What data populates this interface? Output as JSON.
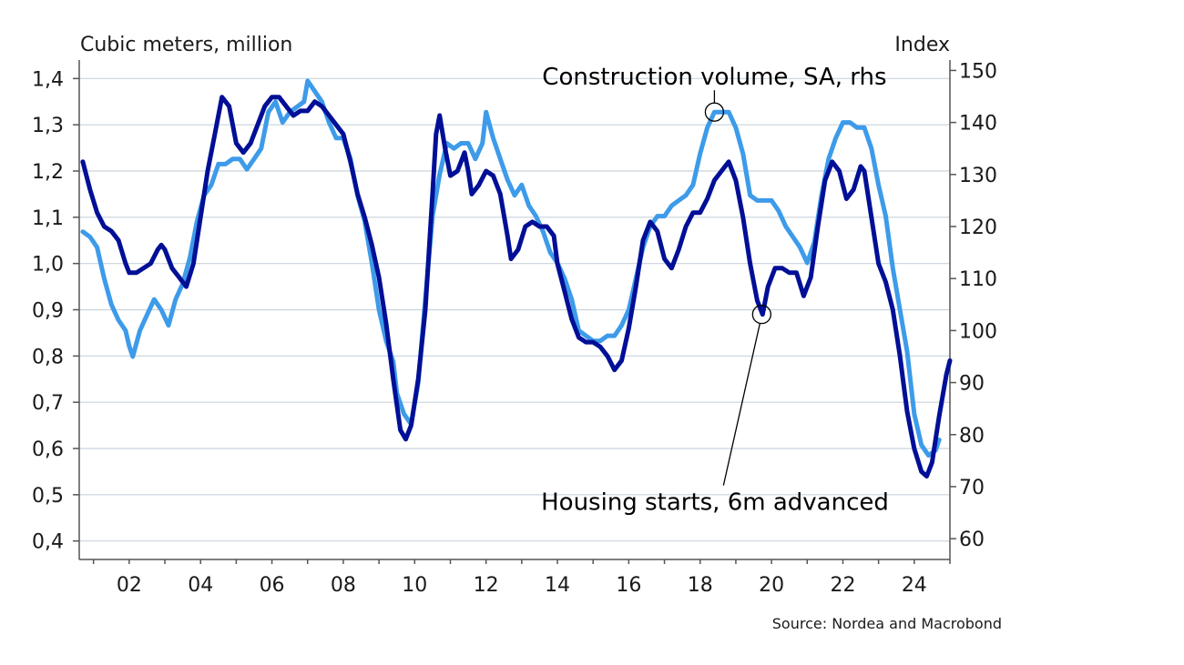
{
  "chart_data": {
    "type": "line",
    "left_axis_title": "Cubic meters, million",
    "right_axis_title": "Index",
    "source": "Source: Nordea and Macrobond",
    "x_ticks": [
      {
        "x": 2002,
        "label": "02"
      },
      {
        "x": 2004,
        "label": "04"
      },
      {
        "x": 2006,
        "label": "06"
      },
      {
        "x": 2008,
        "label": "08"
      },
      {
        "x": 2010,
        "label": "10"
      },
      {
        "x": 2012,
        "label": "12"
      },
      {
        "x": 2014,
        "label": "14"
      },
      {
        "x": 2016,
        "label": "16"
      },
      {
        "x": 2018,
        "label": "18"
      },
      {
        "x": 2020,
        "label": "20"
      },
      {
        "x": 2022,
        "label": "22"
      },
      {
        "x": 2024,
        "label": "24"
      }
    ],
    "xlim": [
      2000.6,
      2025.0
    ],
    "y_left": {
      "lim": [
        0.36,
        1.44
      ],
      "ticks": [
        {
          "v": 0.4,
          "label": "0,4"
        },
        {
          "v": 0.5,
          "label": "0,5"
        },
        {
          "v": 0.6,
          "label": "0,6"
        },
        {
          "v": 0.7,
          "label": "0,7"
        },
        {
          "v": 0.8,
          "label": "0,8"
        },
        {
          "v": 0.9,
          "label": "0,9"
        },
        {
          "v": 1.0,
          "label": "1,0"
        },
        {
          "v": 1.1,
          "label": "1,1"
        },
        {
          "v": 1.2,
          "label": "1,2"
        },
        {
          "v": 1.3,
          "label": "1,3"
        },
        {
          "v": 1.4,
          "label": "1,4"
        }
      ]
    },
    "y_right": {
      "lim": [
        56,
        152
      ],
      "ticks": [
        {
          "v": 60,
          "label": "60"
        },
        {
          "v": 70,
          "label": "70"
        },
        {
          "v": 80,
          "label": "80"
        },
        {
          "v": 90,
          "label": "90"
        },
        {
          "v": 100,
          "label": "100"
        },
        {
          "v": 110,
          "label": "110"
        },
        {
          "v": 120,
          "label": "120"
        },
        {
          "v": 130,
          "label": "130"
        },
        {
          "v": 140,
          "label": "140"
        },
        {
          "v": 150,
          "label": "150"
        }
      ]
    },
    "grid": true,
    "series": [
      {
        "name": "Housing starts, 6m advanced",
        "axis": "left",
        "color": "#000f96",
        "points": [
          [
            2000.7,
            1.22
          ],
          [
            2000.9,
            1.16
          ],
          [
            2001.1,
            1.11
          ],
          [
            2001.3,
            1.08
          ],
          [
            2001.5,
            1.07
          ],
          [
            2001.7,
            1.05
          ],
          [
            2001.9,
            1.0
          ],
          [
            2002.0,
            0.98
          ],
          [
            2002.2,
            0.98
          ],
          [
            2002.4,
            0.99
          ],
          [
            2002.6,
            1.0
          ],
          [
            2002.8,
            1.03
          ],
          [
            2002.9,
            1.04
          ],
          [
            2003.0,
            1.03
          ],
          [
            2003.2,
            0.99
          ],
          [
            2003.4,
            0.97
          ],
          [
            2003.6,
            0.95
          ],
          [
            2003.8,
            1.0
          ],
          [
            2004.0,
            1.1
          ],
          [
            2004.2,
            1.2
          ],
          [
            2004.4,
            1.28
          ],
          [
            2004.6,
            1.36
          ],
          [
            2004.8,
            1.34
          ],
          [
            2005.0,
            1.26
          ],
          [
            2005.2,
            1.24
          ],
          [
            2005.4,
            1.26
          ],
          [
            2005.6,
            1.3
          ],
          [
            2005.8,
            1.34
          ],
          [
            2006.0,
            1.36
          ],
          [
            2006.2,
            1.36
          ],
          [
            2006.4,
            1.34
          ],
          [
            2006.6,
            1.32
          ],
          [
            2006.8,
            1.33
          ],
          [
            2007.0,
            1.33
          ],
          [
            2007.2,
            1.35
          ],
          [
            2007.4,
            1.34
          ],
          [
            2007.6,
            1.32
          ],
          [
            2007.8,
            1.3
          ],
          [
            2008.0,
            1.28
          ],
          [
            2008.2,
            1.22
          ],
          [
            2008.4,
            1.15
          ],
          [
            2008.6,
            1.1
          ],
          [
            2008.8,
            1.04
          ],
          [
            2009.0,
            0.97
          ],
          [
            2009.2,
            0.87
          ],
          [
            2009.4,
            0.75
          ],
          [
            2009.6,
            0.64
          ],
          [
            2009.75,
            0.62
          ],
          [
            2009.9,
            0.65
          ],
          [
            2010.1,
            0.75
          ],
          [
            2010.3,
            0.9
          ],
          [
            2010.5,
            1.15
          ],
          [
            2010.6,
            1.28
          ],
          [
            2010.7,
            1.32
          ],
          [
            2010.85,
            1.25
          ],
          [
            2011.0,
            1.19
          ],
          [
            2011.2,
            1.2
          ],
          [
            2011.4,
            1.24
          ],
          [
            2011.5,
            1.2
          ],
          [
            2011.6,
            1.15
          ],
          [
            2011.8,
            1.17
          ],
          [
            2012.0,
            1.2
          ],
          [
            2012.2,
            1.19
          ],
          [
            2012.4,
            1.15
          ],
          [
            2012.6,
            1.06
          ],
          [
            2012.7,
            1.01
          ],
          [
            2012.9,
            1.03
          ],
          [
            2013.1,
            1.08
          ],
          [
            2013.3,
            1.09
          ],
          [
            2013.5,
            1.08
          ],
          [
            2013.7,
            1.08
          ],
          [
            2013.9,
            1.06
          ],
          [
            2014.0,
            1.0
          ],
          [
            2014.2,
            0.94
          ],
          [
            2014.4,
            0.88
          ],
          [
            2014.6,
            0.84
          ],
          [
            2014.8,
            0.83
          ],
          [
            2015.0,
            0.83
          ],
          [
            2015.2,
            0.82
          ],
          [
            2015.4,
            0.8
          ],
          [
            2015.6,
            0.77
          ],
          [
            2015.8,
            0.79
          ],
          [
            2016.0,
            0.86
          ],
          [
            2016.2,
            0.95
          ],
          [
            2016.4,
            1.05
          ],
          [
            2016.6,
            1.09
          ],
          [
            2016.8,
            1.07
          ],
          [
            2017.0,
            1.01
          ],
          [
            2017.2,
            0.99
          ],
          [
            2017.4,
            1.03
          ],
          [
            2017.6,
            1.08
          ],
          [
            2017.8,
            1.11
          ],
          [
            2018.0,
            1.11
          ],
          [
            2018.2,
            1.14
          ],
          [
            2018.4,
            1.18
          ],
          [
            2018.6,
            1.2
          ],
          [
            2018.8,
            1.22
          ],
          [
            2019.0,
            1.18
          ],
          [
            2019.2,
            1.1
          ],
          [
            2019.4,
            1.0
          ],
          [
            2019.6,
            0.92
          ],
          [
            2019.75,
            0.89
          ],
          [
            2019.9,
            0.95
          ],
          [
            2020.1,
            0.99
          ],
          [
            2020.3,
            0.99
          ],
          [
            2020.5,
            0.98
          ],
          [
            2020.7,
            0.98
          ],
          [
            2020.9,
            0.93
          ],
          [
            2021.1,
            0.97
          ],
          [
            2021.3,
            1.08
          ],
          [
            2021.5,
            1.18
          ],
          [
            2021.7,
            1.22
          ],
          [
            2021.9,
            1.2
          ],
          [
            2022.1,
            1.14
          ],
          [
            2022.3,
            1.16
          ],
          [
            2022.5,
            1.21
          ],
          [
            2022.6,
            1.2
          ],
          [
            2022.8,
            1.1
          ],
          [
            2023.0,
            1.0
          ],
          [
            2023.2,
            0.96
          ],
          [
            2023.4,
            0.9
          ],
          [
            2023.6,
            0.8
          ],
          [
            2023.8,
            0.68
          ],
          [
            2024.0,
            0.6
          ],
          [
            2024.2,
            0.55
          ],
          [
            2024.35,
            0.54
          ],
          [
            2024.5,
            0.57
          ],
          [
            2024.7,
            0.67
          ],
          [
            2024.9,
            0.76
          ],
          [
            2025.0,
            0.79
          ]
        ]
      },
      {
        "name": "Construction volume, SA, rhs",
        "axis": "right",
        "color": "#3d9be9",
        "points": [
          [
            2000.7,
            119
          ],
          [
            2000.9,
            118
          ],
          [
            2001.1,
            116
          ],
          [
            2001.3,
            110
          ],
          [
            2001.5,
            105
          ],
          [
            2001.7,
            102
          ],
          [
            2001.9,
            100
          ],
          [
            2002.0,
            97
          ],
          [
            2002.1,
            95
          ],
          [
            2002.3,
            100
          ],
          [
            2002.5,
            103
          ],
          [
            2002.7,
            106
          ],
          [
            2002.9,
            104
          ],
          [
            2003.1,
            101
          ],
          [
            2003.3,
            106
          ],
          [
            2003.5,
            109
          ],
          [
            2003.7,
            114
          ],
          [
            2003.9,
            121
          ],
          [
            2004.1,
            126
          ],
          [
            2004.3,
            128
          ],
          [
            2004.5,
            132
          ],
          [
            2004.7,
            132
          ],
          [
            2004.9,
            133
          ],
          [
            2005.1,
            133
          ],
          [
            2005.3,
            131
          ],
          [
            2005.5,
            133
          ],
          [
            2005.7,
            135
          ],
          [
            2005.9,
            142
          ],
          [
            2006.1,
            144
          ],
          [
            2006.3,
            140
          ],
          [
            2006.5,
            142
          ],
          [
            2006.7,
            143
          ],
          [
            2006.9,
            144
          ],
          [
            2007.0,
            148
          ],
          [
            2007.2,
            146
          ],
          [
            2007.4,
            144
          ],
          [
            2007.6,
            140
          ],
          [
            2007.8,
            137
          ],
          [
            2008.0,
            137
          ],
          [
            2008.2,
            133
          ],
          [
            2008.4,
            126
          ],
          [
            2008.6,
            121
          ],
          [
            2008.8,
            113
          ],
          [
            2009.0,
            104
          ],
          [
            2009.2,
            98
          ],
          [
            2009.4,
            94
          ],
          [
            2009.5,
            88
          ],
          [
            2009.7,
            84
          ],
          [
            2009.9,
            82
          ],
          [
            2010.1,
            90
          ],
          [
            2010.3,
            106
          ],
          [
            2010.5,
            122
          ],
          [
            2010.7,
            130
          ],
          [
            2010.9,
            136
          ],
          [
            2011.1,
            135
          ],
          [
            2011.3,
            136
          ],
          [
            2011.5,
            136
          ],
          [
            2011.7,
            133
          ],
          [
            2011.9,
            136
          ],
          [
            2012.0,
            142
          ],
          [
            2012.2,
            137
          ],
          [
            2012.4,
            133
          ],
          [
            2012.6,
            129
          ],
          [
            2012.8,
            126
          ],
          [
            2013.0,
            128
          ],
          [
            2013.2,
            124
          ],
          [
            2013.4,
            122
          ],
          [
            2013.6,
            119
          ],
          [
            2013.8,
            115
          ],
          [
            2014.0,
            113
          ],
          [
            2014.2,
            110
          ],
          [
            2014.4,
            106
          ],
          [
            2014.6,
            100
          ],
          [
            2014.8,
            99
          ],
          [
            2015.0,
            98
          ],
          [
            2015.2,
            98
          ],
          [
            2015.4,
            99
          ],
          [
            2015.6,
            99
          ],
          [
            2015.8,
            101
          ],
          [
            2016.0,
            104
          ],
          [
            2016.2,
            110
          ],
          [
            2016.4,
            116
          ],
          [
            2016.6,
            120
          ],
          [
            2016.8,
            122
          ],
          [
            2017.0,
            122
          ],
          [
            2017.2,
            124
          ],
          [
            2017.4,
            125
          ],
          [
            2017.6,
            126
          ],
          [
            2017.8,
            128
          ],
          [
            2018.0,
            134
          ],
          [
            2018.2,
            139
          ],
          [
            2018.4,
            142
          ],
          [
            2018.6,
            142
          ],
          [
            2018.8,
            142
          ],
          [
            2019.0,
            139
          ],
          [
            2019.2,
            134
          ],
          [
            2019.4,
            126
          ],
          [
            2019.6,
            125
          ],
          [
            2019.8,
            125
          ],
          [
            2020.0,
            125
          ],
          [
            2020.2,
            123
          ],
          [
            2020.4,
            120
          ],
          [
            2020.6,
            118
          ],
          [
            2020.8,
            116
          ],
          [
            2021.0,
            113
          ],
          [
            2021.2,
            117
          ],
          [
            2021.4,
            126
          ],
          [
            2021.6,
            133
          ],
          [
            2021.8,
            137
          ],
          [
            2022.0,
            140
          ],
          [
            2022.2,
            140
          ],
          [
            2022.4,
            139
          ],
          [
            2022.6,
            139
          ],
          [
            2022.8,
            135
          ],
          [
            2023.0,
            128
          ],
          [
            2023.2,
            122
          ],
          [
            2023.4,
            112
          ],
          [
            2023.6,
            104
          ],
          [
            2023.8,
            96
          ],
          [
            2024.0,
            84
          ],
          [
            2024.2,
            78
          ],
          [
            2024.4,
            76
          ],
          [
            2024.6,
            77
          ],
          [
            2024.7,
            79
          ]
        ]
      }
    ],
    "annotations": [
      {
        "text": "Construction volume, SA, rhs",
        "series": "Construction volume, SA, rhs",
        "x": 2018.4,
        "y": 142
      },
      {
        "text": "Housing starts, 6m advanced",
        "series": "Housing starts, 6m advanced",
        "x": 2019.7,
        "y": 0.89
      }
    ]
  }
}
